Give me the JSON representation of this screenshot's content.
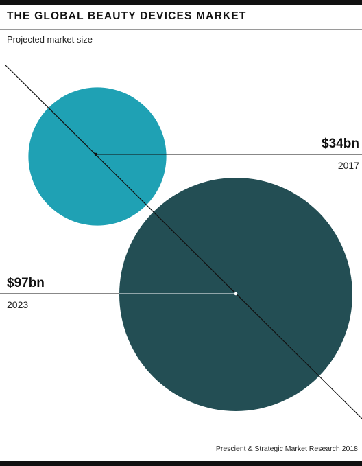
{
  "header": {
    "title": "THE GLOBAL BEAUTY DEVICES MARKET",
    "subtitle": "Projected market size"
  },
  "chart_data": {
    "type": "bubble",
    "unit": "$bn",
    "series": [
      {
        "year": "2017",
        "value": 34,
        "label": "$34bn",
        "color": "#1fa1b4"
      },
      {
        "year": "2023",
        "value": 97,
        "label": "$97bn",
        "color": "#234e54"
      }
    ]
  },
  "footer": {
    "source": "Prescient & Strategic Market Research 2018"
  },
  "colors": {
    "background": "#ffffff",
    "rule": "#111111",
    "bubble_2017": "#1fa1b4",
    "bubble_2023": "#234e54"
  }
}
